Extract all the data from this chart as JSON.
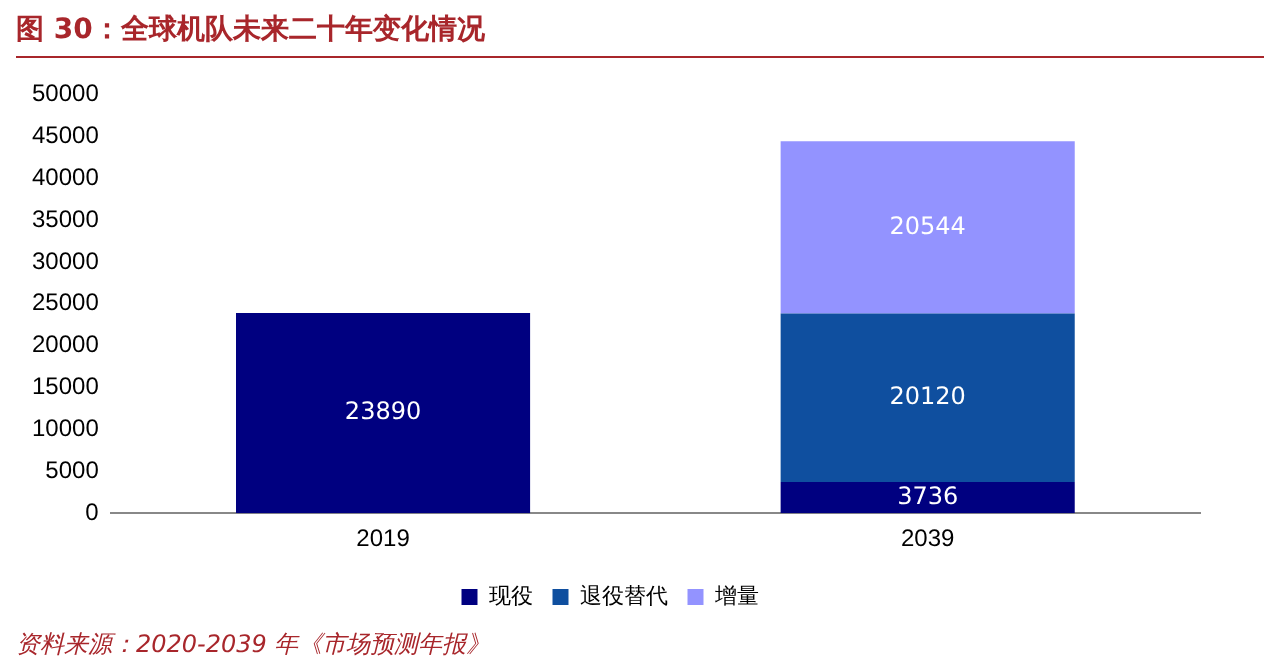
{
  "chart_data": {
    "type": "bar",
    "title": "图 30：全球机队未来二十年变化情况",
    "categories": [
      "2019",
      "2039"
    ],
    "stacked": true,
    "series": [
      {
        "name": "现役",
        "color": "#000080",
        "values": [
          23890,
          3736
        ]
      },
      {
        "name": "退役替代",
        "color": "#0f4f9f",
        "values": [
          null,
          20120
        ]
      },
      {
        "name": "增量",
        "color": "#9393ff",
        "values": [
          null,
          20544
        ]
      }
    ],
    "ylim": [
      0,
      50000
    ],
    "yticks": [
      0,
      5000,
      10000,
      15000,
      20000,
      25000,
      30000,
      35000,
      40000,
      45000,
      50000
    ],
    "grid": false,
    "legend": "bottom",
    "data_labels": true,
    "annotations": [
      "资料来源：2020-2039 年《市场预测年报》"
    ]
  }
}
